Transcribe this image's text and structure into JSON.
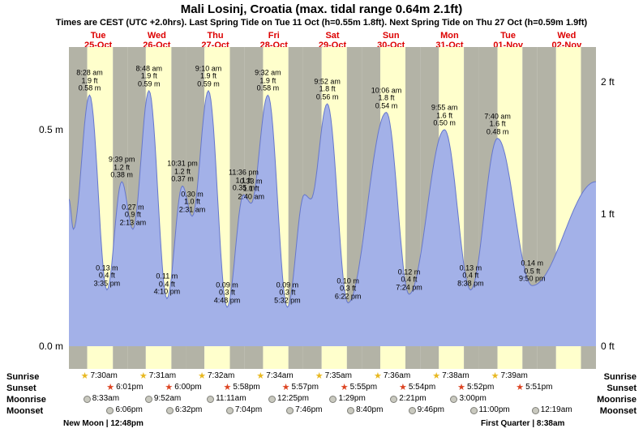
{
  "header": {
    "title": "Mali Losinj, Croatia (max. tidal range 0.64m 2.1ft)",
    "subtitle": "Times are CEST (UTC +2.0hrs). Last Spring Tide on Tue 11 Oct (h=0.55m 1.8ft). Next Spring Tide on Thu 27 Oct (h=0.59m 1.9ft)"
  },
  "days": [
    {
      "name": "Tue",
      "date": "25-Oct"
    },
    {
      "name": "Wed",
      "date": "26-Oct"
    },
    {
      "name": "Thu",
      "date": "27-Oct"
    },
    {
      "name": "Fri",
      "date": "28-Oct"
    },
    {
      "name": "Sat",
      "date": "29-Oct"
    },
    {
      "name": "Sun",
      "date": "30-Oct"
    },
    {
      "name": "Mon",
      "date": "31-Oct"
    },
    {
      "name": "Tue",
      "date": "01-Nov"
    },
    {
      "name": "Wed",
      "date": "02-Nov"
    }
  ],
  "chart_data": {
    "type": "area",
    "num_days": 9,
    "y_axis_range_m": [
      0.0,
      0.69
    ],
    "y_axis_left": [
      {
        "label": "0.5 m",
        "value_m": 0.5
      },
      {
        "label": "0.0 m",
        "value_m": 0.0
      }
    ],
    "y_axis_right": [
      {
        "label": "2 ft",
        "value_m": 0.6096
      },
      {
        "label": "1 ft",
        "value_m": 0.3048
      },
      {
        "label": "0 ft",
        "value_m": 0.0
      }
    ],
    "tide_events": [
      {
        "day": 0,
        "date": "25-Oct",
        "type": "high",
        "time": "8:28 am",
        "ft": "1.9 ft",
        "m": "0.58 m",
        "value_m": 0.58
      },
      {
        "day": 0,
        "date": "25-Oct",
        "type": "low",
        "time": "3:35 pm",
        "ft": "0.4 ft",
        "m": "0.13 m",
        "value_m": 0.13
      },
      {
        "day": 0,
        "date": "25-Oct",
        "type": "high",
        "time": "9:39 pm",
        "ft": "1.2 ft",
        "m": "0.38 m",
        "value_m": 0.38
      },
      {
        "day": 1,
        "date": "26-Oct",
        "type": "low",
        "time": "2:13 am",
        "ft": "0.9 ft",
        "m": "0.27 m",
        "value_m": 0.27
      },
      {
        "day": 1,
        "date": "26-Oct",
        "type": "high",
        "time": "8:48 am",
        "ft": "1.9 ft",
        "m": "0.59 m",
        "value_m": 0.59
      },
      {
        "day": 1,
        "date": "26-Oct",
        "type": "low",
        "time": "4:10 pm",
        "ft": "0.4 ft",
        "m": "0.11 m",
        "value_m": 0.11
      },
      {
        "day": 1,
        "date": "26-Oct",
        "type": "high",
        "time": "10:31 pm",
        "ft": "1.2 ft",
        "m": "0.37 m",
        "value_m": 0.37
      },
      {
        "day": 2,
        "date": "27-Oct",
        "type": "low",
        "time": "2:31 am",
        "ft": "1.0 ft",
        "m": "0.30 m",
        "value_m": 0.3
      },
      {
        "day": 2,
        "date": "27-Oct",
        "type": "high",
        "time": "9:10 am",
        "ft": "1.9 ft",
        "m": "0.59 m",
        "value_m": 0.59
      },
      {
        "day": 2,
        "date": "27-Oct",
        "type": "low",
        "time": "4:48 pm",
        "ft": "0.3 ft",
        "m": "0.09 m",
        "value_m": 0.09
      },
      {
        "day": 2,
        "date": "27-Oct",
        "type": "high",
        "time": "11:36 pm",
        "ft": "1.1 ft",
        "m": "0.35 m",
        "value_m": 0.35
      },
      {
        "day": 3,
        "date": "28-Oct",
        "type": "low",
        "time": "2:40 am",
        "ft": "1.1 ft",
        "m": "0.33 m",
        "value_m": 0.33
      },
      {
        "day": 3,
        "date": "28-Oct",
        "type": "high",
        "time": "9:32 am",
        "ft": "1.9 ft",
        "m": "0.58 m",
        "value_m": 0.58
      },
      {
        "day": 3,
        "date": "28-Oct",
        "type": "low",
        "time": "5:32 pm",
        "ft": "0.3 ft",
        "m": "0.09 m",
        "value_m": 0.09
      },
      {
        "day": 4,
        "date": "29-Oct",
        "type": "high",
        "time": "9:52 am",
        "ft": "1.8 ft",
        "m": "0.56 m",
        "value_m": 0.56
      },
      {
        "day": 4,
        "date": "29-Oct",
        "type": "low",
        "time": "6:22 pm",
        "ft": "0.3 ft",
        "m": "0.10 m",
        "value_m": 0.1
      },
      {
        "day": 5,
        "date": "30-Oct",
        "type": "high",
        "time": "10:06 am",
        "ft": "1.8 ft",
        "m": "0.54 m",
        "value_m": 0.54
      },
      {
        "day": 5,
        "date": "30-Oct",
        "type": "low",
        "time": "7:24 pm",
        "ft": "0.4 ft",
        "m": "0.12 m",
        "value_m": 0.12
      },
      {
        "day": 6,
        "date": "31-Oct",
        "type": "high",
        "time": "9:55 am",
        "ft": "1.6 ft",
        "m": "0.50 m",
        "value_m": 0.5
      },
      {
        "day": 6,
        "date": "31-Oct",
        "type": "low",
        "time": "8:38 pm",
        "ft": "0.4 ft",
        "m": "0.13 m",
        "value_m": 0.13
      },
      {
        "day": 7,
        "date": "01-Nov",
        "type": "high",
        "time": "7:40 am",
        "ft": "1.6 ft",
        "m": "0.48 m",
        "value_m": 0.48
      },
      {
        "day": 7,
        "date": "01-Nov",
        "type": "low",
        "time": "9:50 pm",
        "ft": "0.5 ft",
        "m": "0.14 m",
        "value_m": 0.14
      }
    ],
    "shape_points_estimated": [
      {
        "day": 0,
        "time": "12:00 am",
        "value_m": 0.34
      },
      {
        "day": 0,
        "time": "1:50 am",
        "value_m": 0.27
      },
      {
        "day": 4,
        "time": "12:30 am",
        "value_m": 0.35
      },
      {
        "day": 4,
        "time": "3:10 am",
        "value_m": 0.34
      },
      {
        "day": 9,
        "time": "12:00 am",
        "value_m": 0.38
      }
    ],
    "colors": {
      "day_band": "#ffffcc",
      "night_band": "#b3b3a6",
      "tide_fill": "#a3b1e8",
      "tide_line": "#6677cc",
      "header_red": "#dd0000",
      "sunrise_star": "#e8b820",
      "sunset_star": "#dd4422",
      "moon_icon": "#c9c9bf"
    }
  },
  "almanac": {
    "rows": [
      {
        "id": "sunrise",
        "label": "Sunrise",
        "icon": "sunrise-star-icon",
        "entries": [
          {
            "day": 0,
            "time": "7:30am"
          },
          {
            "day": 1,
            "time": "7:31am"
          },
          {
            "day": 2,
            "time": "7:32am"
          },
          {
            "day": 3,
            "time": "7:34am"
          },
          {
            "day": 4,
            "time": "7:35am"
          },
          {
            "day": 5,
            "time": "7:36am"
          },
          {
            "day": 6,
            "time": "7:38am"
          },
          {
            "day": 7,
            "time": "7:39am"
          }
        ]
      },
      {
        "id": "sunset",
        "label": "Sunset",
        "icon": "sunset-star-icon",
        "entries": [
          {
            "day": 0,
            "time": "6:01pm"
          },
          {
            "day": 1,
            "time": "6:00pm"
          },
          {
            "day": 2,
            "time": "5:58pm"
          },
          {
            "day": 3,
            "time": "5:57pm"
          },
          {
            "day": 4,
            "time": "5:55pm"
          },
          {
            "day": 5,
            "time": "5:54pm"
          },
          {
            "day": 6,
            "time": "5:52pm"
          },
          {
            "day": 7,
            "time": "5:51pm"
          }
        ]
      },
      {
        "id": "moonrise",
        "label": "Moonrise",
        "icon": "moonrise-icon",
        "entries": [
          {
            "day": 0,
            "time": "8:33am"
          },
          {
            "day": 1,
            "time": "9:52am"
          },
          {
            "day": 2,
            "time": "11:11am"
          },
          {
            "day": 3,
            "time": "12:25pm"
          },
          {
            "day": 4,
            "time": "1:29pm"
          },
          {
            "day": 5,
            "time": "2:21pm"
          },
          {
            "day": 6,
            "time": "3:00pm"
          }
        ]
      },
      {
        "id": "moonset",
        "label": "Moonset",
        "icon": "moonset-icon",
        "entries": [
          {
            "day": 0,
            "time": "6:06pm"
          },
          {
            "day": 1,
            "time": "6:32pm"
          },
          {
            "day": 2,
            "time": "7:04pm"
          },
          {
            "day": 3,
            "time": "7:46pm"
          },
          {
            "day": 4,
            "time": "8:40pm"
          },
          {
            "day": 5,
            "time": "9:46pm"
          },
          {
            "day": 6,
            "time": "11:00pm"
          },
          {
            "day": 8,
            "time": "12:19am"
          }
        ]
      }
    ],
    "note_new_moon": "New Moon | 12:48pm",
    "note_first_quarter": "First Quarter | 8:38am"
  }
}
